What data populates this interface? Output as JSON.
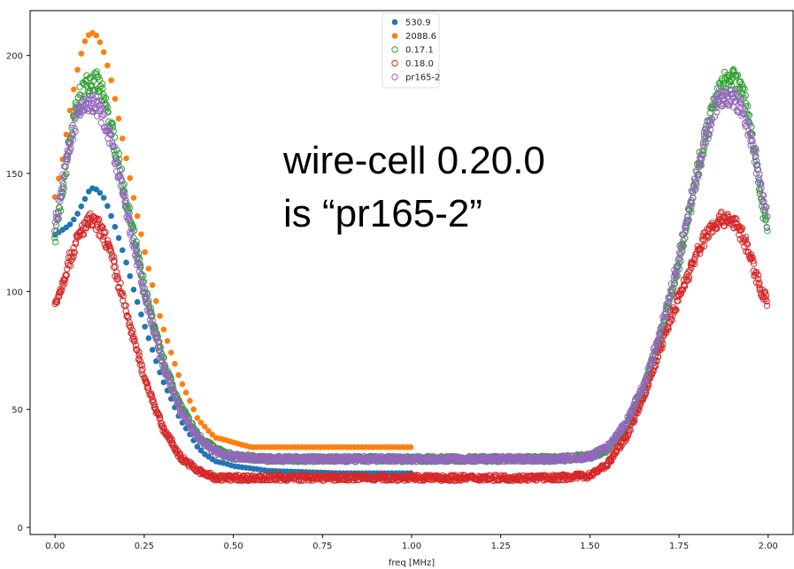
{
  "chart_data": {
    "type": "scatter",
    "xlabel": "freq [MHz]",
    "ylabel": "",
    "xlim": [
      -0.07,
      2.07
    ],
    "ylim": [
      -3,
      219
    ],
    "xticks": [
      "0.00",
      "0.25",
      "0.50",
      "0.75",
      "1.00",
      "1.25",
      "1.50",
      "1.75",
      "2.00"
    ],
    "yticks": [
      "0",
      "50",
      "100",
      "150",
      "200"
    ],
    "grid": false,
    "legend_position": "top-center",
    "annotation": [
      "wire-cell 0.20.0",
      "is “pr165-2”"
    ],
    "series": [
      {
        "name": "530.9",
        "color": "#1f77b4",
        "filled": true,
        "x": [
          0.0,
          0.02,
          0.04,
          0.06,
          0.08,
          0.1,
          0.12,
          0.14,
          0.16,
          0.18,
          0.2,
          0.22,
          0.25,
          0.28,
          0.3,
          0.33,
          0.35,
          0.38,
          0.4,
          0.42,
          0.45,
          0.48,
          0.5,
          0.55,
          0.6,
          0.7,
          0.8,
          0.9,
          1.0
        ],
        "y": [
          124,
          126,
          128,
          132,
          138,
          144,
          143,
          139,
          131,
          122,
          112,
          101,
          86,
          72,
          63,
          53,
          46,
          39,
          34,
          31,
          28,
          27,
          26,
          25,
          24,
          23.5,
          23,
          23,
          23
        ]
      },
      {
        "name": "2088.6",
        "color": "#ff7f0e",
        "filled": true,
        "x": [
          0.0,
          0.02,
          0.04,
          0.06,
          0.08,
          0.1,
          0.12,
          0.14,
          0.16,
          0.18,
          0.2,
          0.22,
          0.25,
          0.28,
          0.3,
          0.33,
          0.35,
          0.38,
          0.4,
          0.43,
          0.45,
          0.48,
          0.5,
          0.55,
          0.6,
          0.7,
          0.8,
          0.9,
          1.0
        ],
        "y": [
          140,
          155,
          175,
          192,
          205,
          210,
          208,
          200,
          188,
          172,
          156,
          140,
          118,
          98,
          86,
          72,
          63,
          53,
          46,
          41,
          38,
          37,
          36,
          34,
          34,
          34,
          34,
          34,
          34
        ]
      },
      {
        "name": "0.17.1",
        "color": "#2ca02c",
        "filled": false,
        "x": [
          0.0,
          0.02,
          0.04,
          0.06,
          0.08,
          0.1,
          0.12,
          0.14,
          0.16,
          0.18,
          0.2,
          0.25,
          0.3,
          0.35,
          0.4,
          0.45,
          0.5,
          0.6,
          0.8,
          1.0,
          1.2,
          1.4,
          1.5,
          1.55,
          1.6,
          1.65,
          1.7,
          1.75,
          1.8,
          1.82,
          1.84,
          1.86,
          1.88,
          1.9,
          1.92,
          1.94,
          1.96,
          1.98,
          2.0
        ],
        "y": [
          124,
          140,
          162,
          178,
          186,
          190,
          188,
          180,
          168,
          154,
          138,
          102,
          72,
          52,
          39,
          33,
          30,
          29,
          29,
          29,
          29,
          29,
          30,
          33,
          42,
          58,
          82,
          112,
          150,
          163,
          175,
          184,
          189,
          190,
          187,
          178,
          162,
          140,
          124
        ]
      },
      {
        "name": "0.18.0",
        "color": "#d62728",
        "filled": false,
        "x": [
          0.0,
          0.02,
          0.04,
          0.06,
          0.08,
          0.1,
          0.12,
          0.14,
          0.16,
          0.18,
          0.2,
          0.25,
          0.3,
          0.35,
          0.4,
          0.45,
          0.5,
          0.6,
          0.8,
          1.0,
          1.2,
          1.4,
          1.5,
          1.55,
          1.6,
          1.65,
          1.7,
          1.75,
          1.8,
          1.82,
          1.84,
          1.86,
          1.88,
          1.9,
          1.92,
          1.94,
          1.96,
          1.98,
          2.0
        ],
        "y": [
          95,
          103,
          113,
          121,
          127,
          130,
          128,
          123,
          114,
          103,
          91,
          64,
          43,
          30,
          24,
          21,
          21,
          21,
          21,
          21,
          21,
          21,
          22,
          27,
          38,
          55,
          77,
          98,
          116,
          122,
          127,
          130,
          131,
          130,
          126,
          119,
          110,
          101,
          95
        ]
      },
      {
        "name": "pr165-2",
        "color": "#9467bd",
        "filled": false,
        "x": [
          0.0,
          0.02,
          0.04,
          0.06,
          0.08,
          0.1,
          0.12,
          0.14,
          0.16,
          0.18,
          0.2,
          0.25,
          0.3,
          0.35,
          0.4,
          0.45,
          0.5,
          0.6,
          0.8,
          1.0,
          1.2,
          1.4,
          1.5,
          1.55,
          1.6,
          1.65,
          1.7,
          1.75,
          1.8,
          1.82,
          1.84,
          1.86,
          1.88,
          1.9,
          1.92,
          1.94,
          1.96,
          1.98,
          2.0
        ],
        "y": [
          128,
          145,
          162,
          173,
          179,
          180,
          178,
          172,
          162,
          149,
          134,
          99,
          70,
          50,
          38,
          32,
          30,
          29,
          29,
          29,
          29,
          29,
          30,
          34,
          44,
          60,
          84,
          114,
          150,
          163,
          174,
          181,
          183,
          182,
          179,
          172,
          160,
          143,
          128
        ]
      }
    ]
  }
}
